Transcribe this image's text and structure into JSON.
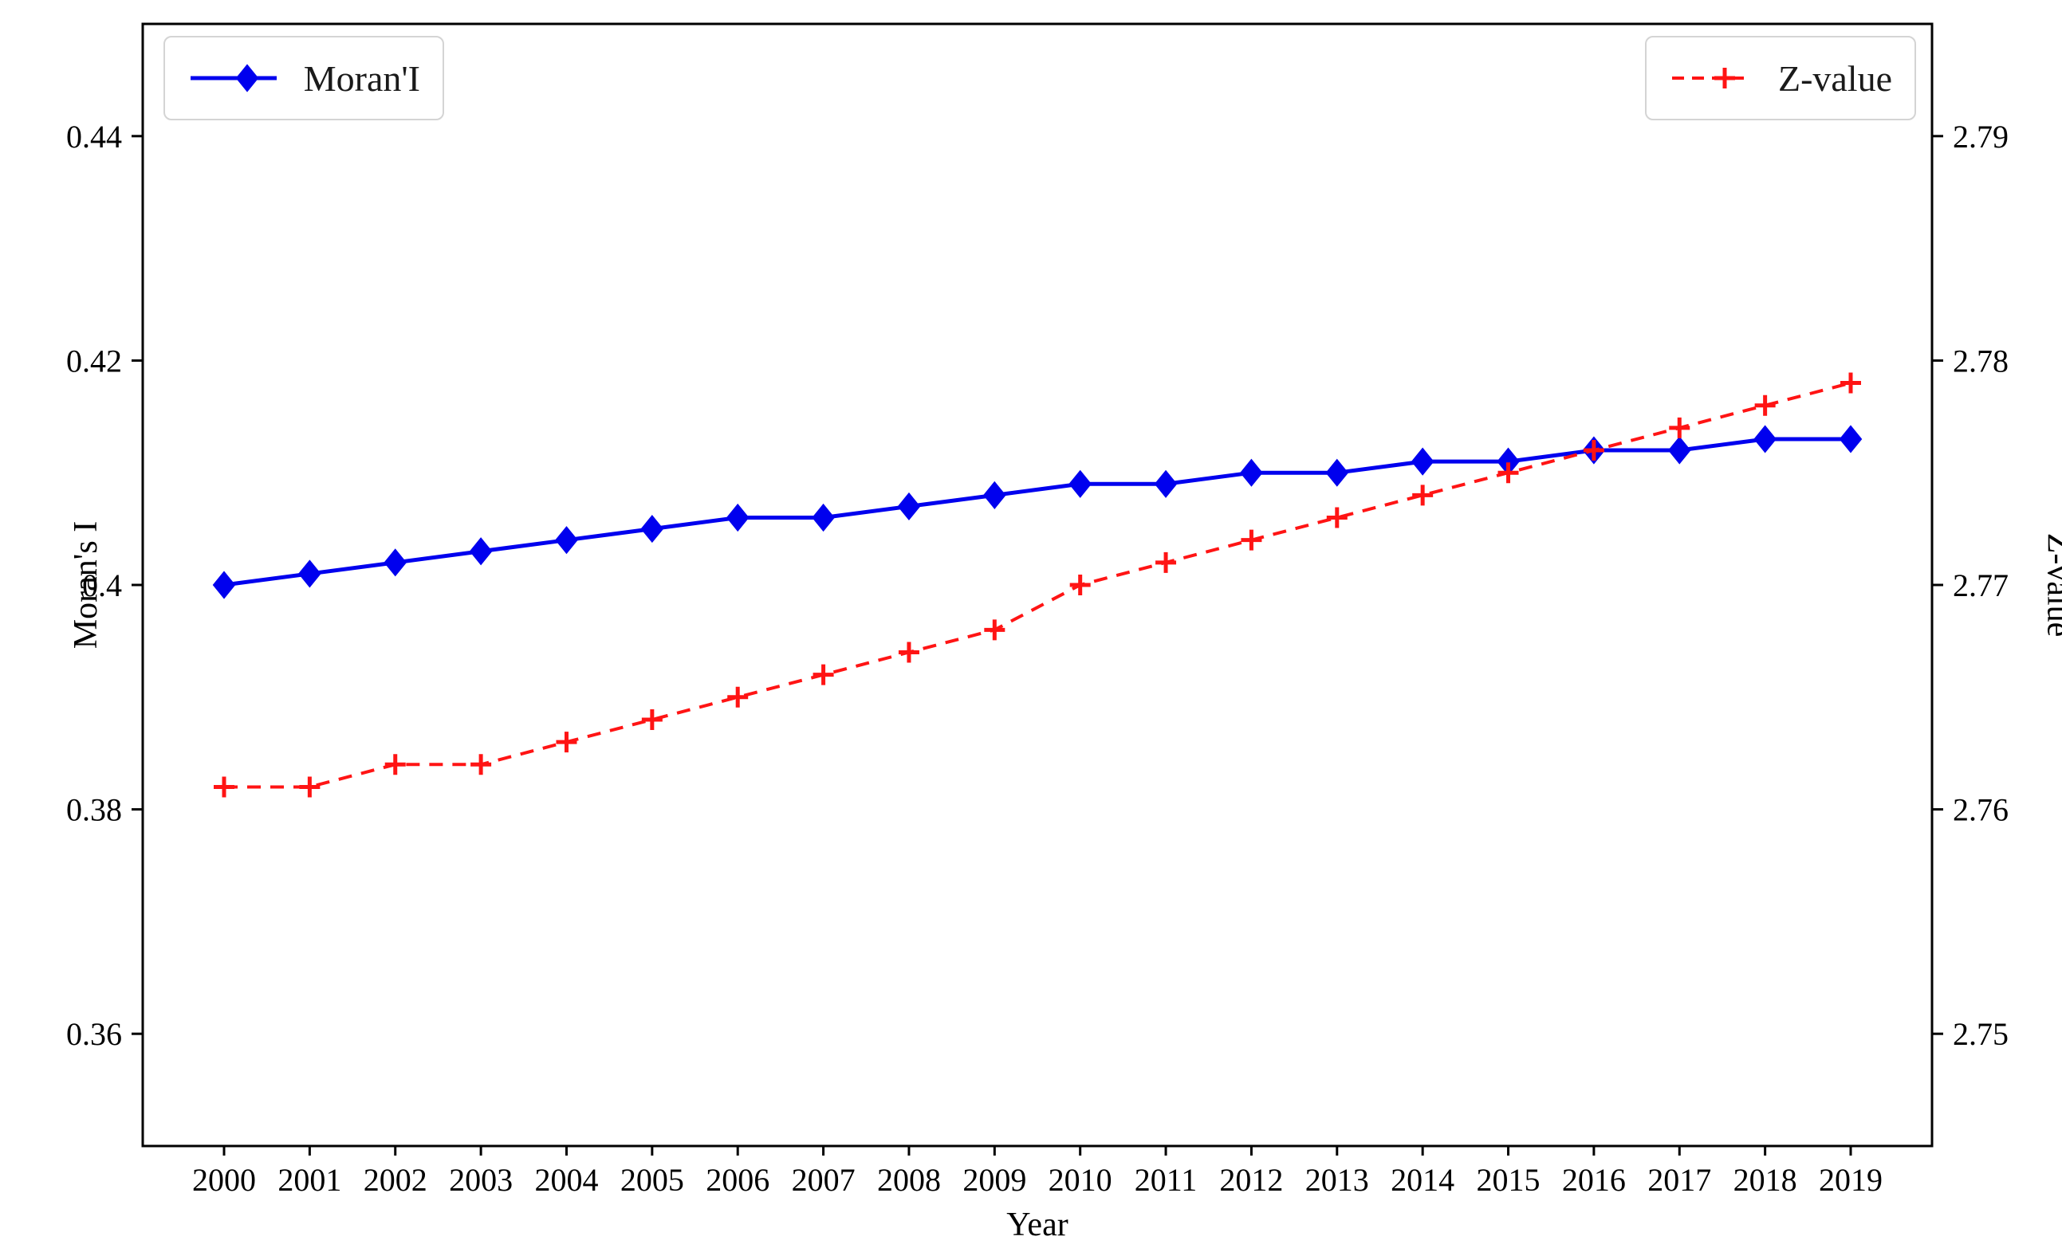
{
  "figure": {
    "xlabel": "Year",
    "ylabel_left": "Moran's I",
    "ylabel_right": "Z-value",
    "legend_left_label": "Moran'I",
    "legend_right_label": "Z-value",
    "background": "#ffffff",
    "frame_color": "#000000"
  },
  "chart_data": {
    "type": "line",
    "title": "",
    "x": [
      2000,
      2001,
      2002,
      2003,
      2004,
      2005,
      2006,
      2007,
      2008,
      2009,
      2010,
      2011,
      2012,
      2013,
      2014,
      2015,
      2016,
      2017,
      2018,
      2019
    ],
    "x_axis": {
      "label": "Year",
      "tick_labels": [
        "2000",
        "2001",
        "2002",
        "2003",
        "2004",
        "2005",
        "2006",
        "2007",
        "2008",
        "2009",
        "2010",
        "2011",
        "2012",
        "2013",
        "2014",
        "2015",
        "2016",
        "2017",
        "2018",
        "2019"
      ],
      "xlim": [
        1999.05,
        2019.95
      ],
      "grid": false
    },
    "left_axis": {
      "label": "Moran's I",
      "ticks": [
        0.36,
        0.38,
        0.4,
        0.42,
        0.44
      ],
      "tick_labels": [
        "0.36",
        "0.38",
        "0.4",
        "0.42",
        "0.44"
      ],
      "ylim": [
        0.35,
        0.45
      ]
    },
    "right_axis": {
      "label": "Z-value",
      "ticks": [
        2.75,
        2.76,
        2.77,
        2.78,
        2.79
      ],
      "tick_labels": [
        "2.75",
        "2.76",
        "2.77",
        "2.78",
        "2.79"
      ],
      "ylim": [
        2.745,
        2.795
      ]
    },
    "series": [
      {
        "name": "Moran'I",
        "axis": "left",
        "color": "#0000ee",
        "linestyle": "solid",
        "marker": "diamond",
        "values": [
          0.4,
          0.401,
          0.402,
          0.403,
          0.404,
          0.405,
          0.406,
          0.406,
          0.407,
          0.408,
          0.409,
          0.409,
          0.41,
          0.41,
          0.411,
          0.411,
          0.412,
          0.412,
          0.413,
          0.413
        ]
      },
      {
        "name": "Z-value",
        "axis": "right",
        "color": "#ff1414",
        "linestyle": "dashed",
        "marker": "plus",
        "values": [
          2.761,
          2.761,
          2.762,
          2.762,
          2.763,
          2.764,
          2.765,
          2.766,
          2.767,
          2.768,
          2.77,
          2.771,
          2.772,
          2.773,
          2.774,
          2.775,
          2.776,
          2.777,
          2.778,
          2.779
        ]
      }
    ],
    "legend_position": [
      "upper left",
      "upper right"
    ]
  }
}
